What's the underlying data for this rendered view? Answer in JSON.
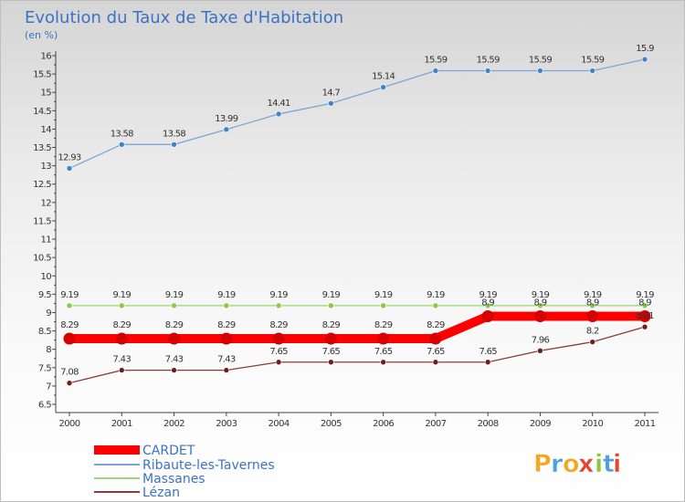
{
  "chart_data": {
    "type": "line",
    "title": "Evolution du Taux de Taxe d'Habitation",
    "subtitle": "(en %)",
    "xlabel": "",
    "ylabel": "",
    "x": [
      "2000",
      "2001",
      "2002",
      "2003",
      "2004",
      "2005",
      "2006",
      "2007",
      "2008",
      "2009",
      "2010",
      "2011"
    ],
    "ylim": [
      6.5,
      16
    ],
    "yticks": [
      "6.5",
      "7",
      "7.5",
      "8",
      "8.5",
      "9",
      "9.5",
      "10",
      "10.5",
      "11",
      "11.5",
      "12",
      "12.5",
      "13",
      "13.5",
      "14",
      "14.5",
      "15",
      "15.5",
      "16"
    ],
    "grid": false,
    "legend_position": "bottom-left",
    "series": [
      {
        "name": "CARDET",
        "color": "#ff0000",
        "marker_color": "#d60000",
        "values": [
          8.29,
          8.29,
          8.29,
          8.29,
          8.29,
          8.29,
          8.29,
          8.29,
          8.9,
          8.9,
          8.9,
          8.9
        ],
        "labels": [
          "8.29",
          "8.29",
          "8.29",
          "8.29",
          "8.29",
          "8.29",
          "8.29",
          "8.29",
          "8.9",
          "8.9",
          "8.9",
          "8.9"
        ]
      },
      {
        "name": "Ribaute-les-Tavernes",
        "color": "#7aa7d6",
        "marker_color": "#3f84c9",
        "values": [
          12.93,
          13.58,
          13.58,
          13.99,
          14.41,
          14.7,
          15.14,
          15.59,
          15.59,
          15.59,
          15.59,
          15.9
        ],
        "labels": [
          "12.93",
          "13.58",
          "13.58",
          "13.99",
          "14.41",
          "14.7",
          "15.14",
          "15.59",
          "15.59",
          "15.59",
          "15.59",
          "15.9"
        ]
      },
      {
        "name": "Massanes",
        "color": "#a5d67e",
        "marker_color": "#86cc4a",
        "values": [
          9.19,
          9.19,
          9.19,
          9.19,
          9.19,
          9.19,
          9.19,
          9.19,
          9.19,
          9.19,
          9.19,
          9.19
        ],
        "labels": [
          "9.19",
          "9.19",
          "9.19",
          "9.19",
          "9.19",
          "9.19",
          "9.19",
          "9.19",
          "9.19",
          "9.19",
          "9.19",
          "9.19"
        ]
      },
      {
        "name": "Lézan",
        "color": "#8c3a3a",
        "marker_color": "#6e1e1e",
        "values": [
          7.08,
          7.43,
          7.43,
          7.43,
          7.65,
          7.65,
          7.65,
          7.65,
          7.65,
          7.96,
          8.2,
          8.61
        ],
        "labels": [
          "7.08",
          "7.43",
          "7.43",
          "7.43",
          "7.65",
          "7.65",
          "7.65",
          "7.65",
          "7.65",
          "7.96",
          "8.2",
          "8.61"
        ]
      }
    ]
  },
  "logo": {
    "text": "Proxiti",
    "letters": [
      "P",
      "r",
      "o",
      "x",
      "i",
      "t",
      "i"
    ],
    "colors": [
      "#f5a623",
      "#4aa3df",
      "#f5a623",
      "#e8452f",
      "#8cc63f",
      "#4aa3df",
      "#e8452f"
    ]
  }
}
